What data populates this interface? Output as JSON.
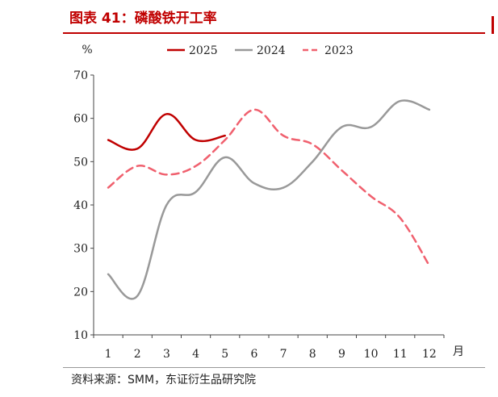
{
  "header": {
    "title": "图表 41：磷酸铁开工率"
  },
  "footer": {
    "source": "资料来源：SMM，东证衍生品研究院"
  },
  "chart_data": {
    "type": "line",
    "title": "",
    "xlabel": "月",
    "ylabel": "%",
    "categories": [
      "1",
      "2",
      "3",
      "4",
      "5",
      "6",
      "7",
      "8",
      "9",
      "10",
      "11",
      "12"
    ],
    "ylim": [
      10,
      70
    ],
    "yticks": [
      "10",
      "20",
      "30",
      "40",
      "50",
      "60",
      "70"
    ],
    "grid": false,
    "legend_position": "top",
    "series": [
      {
        "name": "2025",
        "color": "#c00000",
        "dash": "solid",
        "values": [
          55,
          53,
          61,
          55,
          56,
          null,
          null,
          null,
          null,
          null,
          null,
          null
        ]
      },
      {
        "name": "2024",
        "color": "#999999",
        "dash": "solid",
        "values": [
          24,
          19,
          40,
          43,
          51,
          45,
          44,
          50,
          58,
          58,
          64,
          62
        ]
      },
      {
        "name": "2023",
        "color": "#f0606e",
        "dash": "dashed",
        "values": [
          44,
          49,
          47,
          49,
          55,
          62,
          56,
          54,
          48,
          42,
          37,
          26
        ]
      }
    ]
  }
}
